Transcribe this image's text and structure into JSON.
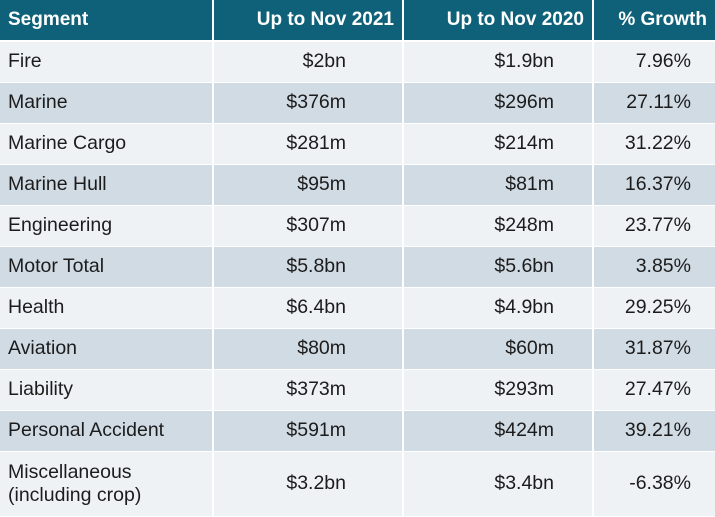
{
  "chart_data": {
    "type": "table",
    "columns": [
      "Segment",
      "Up to Nov 2021",
      "Up to Nov 2020",
      "% Growth"
    ],
    "rows": [
      [
        "Fire",
        "$2bn",
        "$1.9bn",
        "7.96%"
      ],
      [
        "Marine",
        "$376m",
        "$296m",
        "27.11%"
      ],
      [
        "Marine Cargo",
        "$281m",
        "$214m",
        "31.22%"
      ],
      [
        "Marine Hull",
        "$95m",
        "$81m",
        "16.37%"
      ],
      [
        "Engineering",
        "$307m",
        "$248m",
        "23.77%"
      ],
      [
        "Motor Total",
        "$5.8bn",
        "$5.6bn",
        "3.85%"
      ],
      [
        "Health",
        "$6.4bn",
        "$4.9bn",
        "29.25%"
      ],
      [
        "Aviation",
        "$80m",
        "$60m",
        "31.87%"
      ],
      [
        "Liability",
        "$373m",
        "$293m",
        "27.47%"
      ],
      [
        "Personal Accident",
        "$591m",
        "$424m",
        "39.21%"
      ],
      [
        "Miscellaneous\n(including crop)",
        "$3.2bn",
        "$3.4bn",
        "-6.38%"
      ]
    ]
  },
  "colors": {
    "header_bg": "#0e6178",
    "header_text": "#ffffff",
    "row_light": "#eef2f5",
    "row_dark": "#d1dbe4"
  }
}
